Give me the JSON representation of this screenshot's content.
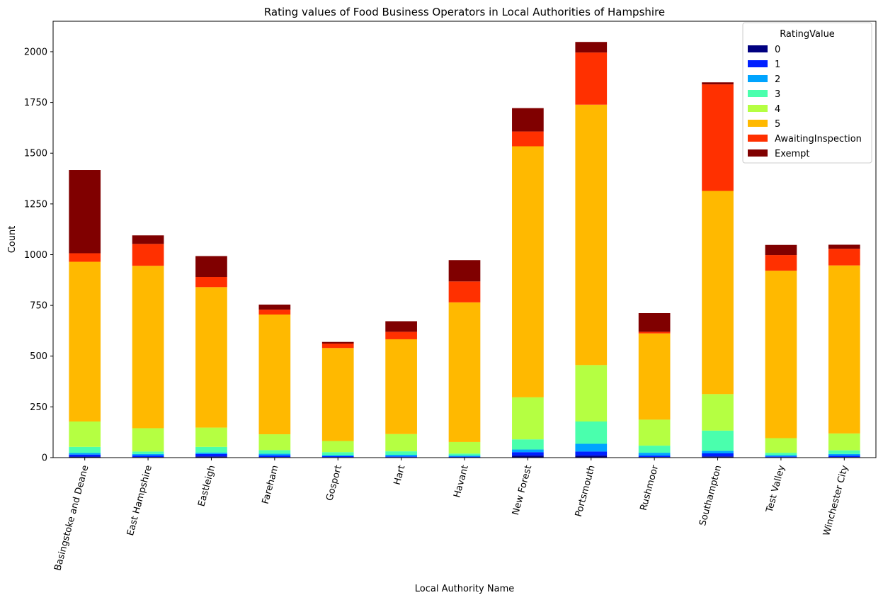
{
  "chart_data": {
    "type": "bar",
    "stacked": true,
    "title": "Rating values of Food Business Operators in Local Authorities of Hampshire",
    "xlabel": "Local Authority Name",
    "ylabel": "Count",
    "ylim": [
      0,
      2150
    ],
    "yticks": [
      0,
      250,
      500,
      750,
      1000,
      1250,
      1500,
      1750,
      2000
    ],
    "grid": false,
    "legend_title": "RatingValue",
    "legend_position": "top-right",
    "categories": [
      "Basingstoke and Deane",
      "East Hampshire",
      "Eastleigh",
      "Fareham",
      "Gosport",
      "Hart",
      "Havant",
      "New Forest",
      "Portsmouth",
      "Rushmoor",
      "Southampton",
      "Test Valley",
      "Winchester City"
    ],
    "series": [
      {
        "name": "0",
        "color": "#000080",
        "values": [
          5,
          3,
          6,
          3,
          2,
          2,
          1,
          10,
          10,
          3,
          6,
          2,
          3
        ]
      },
      {
        "name": "1",
        "color": "#0020ff",
        "values": [
          10,
          8,
          12,
          8,
          5,
          4,
          4,
          17,
          20,
          7,
          15,
          4,
          7
        ]
      },
      {
        "name": "2",
        "color": "#00a4ff",
        "values": [
          8,
          7,
          7,
          8,
          5,
          8,
          5,
          13,
          38,
          14,
          12,
          6,
          8
        ]
      },
      {
        "name": "3",
        "color": "#4affad",
        "values": [
          30,
          12,
          28,
          18,
          15,
          17,
          10,
          50,
          110,
          35,
          100,
          12,
          18
        ]
      },
      {
        "name": "4",
        "color": "#b5ff42",
        "values": [
          125,
          115,
          95,
          78,
          55,
          85,
          57,
          207,
          278,
          128,
          180,
          72,
          83
        ]
      },
      {
        "name": "5",
        "color": "#ffb900",
        "values": [
          787,
          800,
          692,
          590,
          458,
          467,
          688,
          1237,
          1283,
          425,
          1001,
          825,
          828
        ]
      },
      {
        "name": "AwaitingInspection",
        "color": "#ff3000",
        "values": [
          42,
          108,
          50,
          24,
          22,
          37,
          103,
          73,
          257,
          8,
          525,
          77,
          82
        ]
      },
      {
        "name": "Exempt",
        "color": "#800000",
        "values": [
          410,
          42,
          103,
          25,
          8,
          52,
          105,
          115,
          52,
          92,
          10,
          50,
          20
        ]
      }
    ]
  }
}
